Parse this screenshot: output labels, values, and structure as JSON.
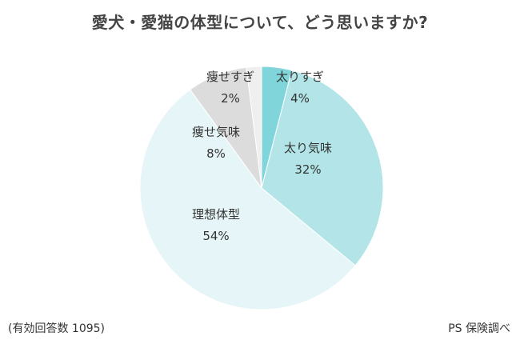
{
  "title": "愛犬・愛猫の体型について、どう思いますか?",
  "footnote": "(有効回答数 1095)",
  "source": "PS 保険調べ",
  "chart_data": {
    "type": "pie",
    "title": "愛犬・愛猫の体型について、どう思いますか?",
    "start": "12 o'clock, clockwise",
    "slices": [
      {
        "label": "太りすぎ",
        "value": 4,
        "value_label": "4%",
        "color": "#7fd5da"
      },
      {
        "label": "太り気味",
        "value": 32,
        "value_label": "32%",
        "color": "#b3e5e8"
      },
      {
        "label": "理想体型",
        "value": 54,
        "value_label": "54%",
        "color": "#e6f5f7"
      },
      {
        "label": "痩せ気味",
        "value": 8,
        "value_label": "8%",
        "color": "#dcdcdc"
      },
      {
        "label": "痩せすぎ",
        "value": 2,
        "value_label": "2%",
        "color": "#efefef"
      }
    ]
  }
}
